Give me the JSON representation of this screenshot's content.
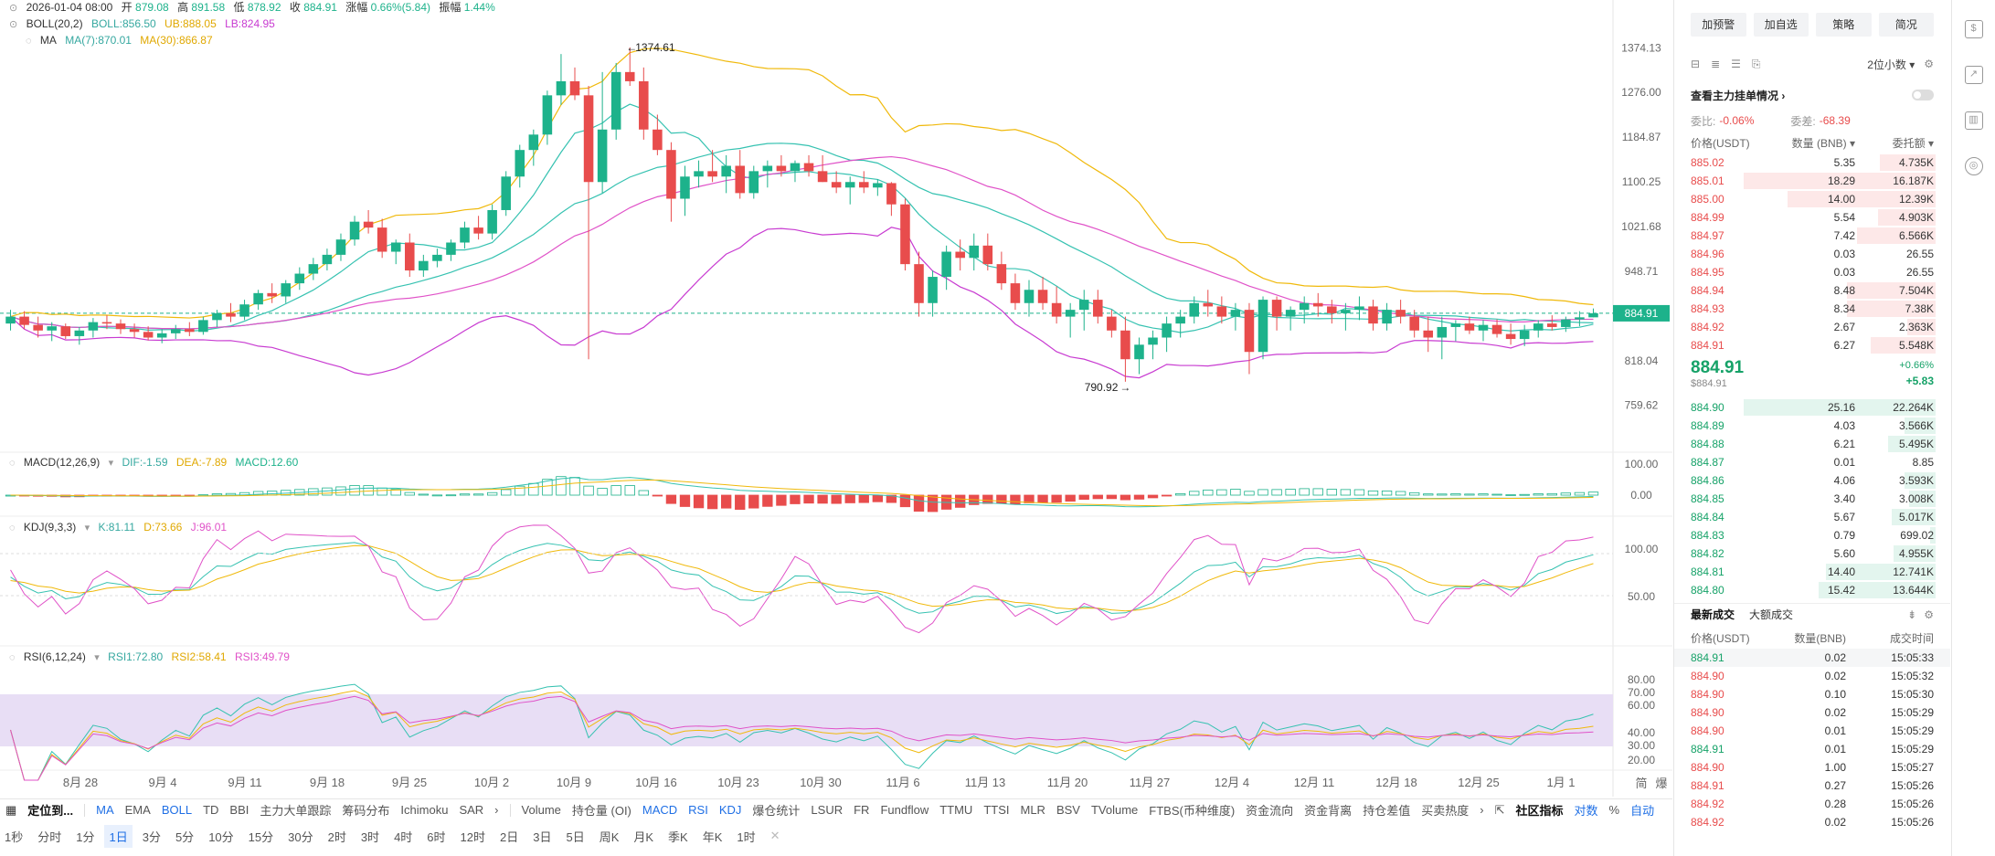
{
  "legend": {
    "date": "2026-01-04 08:00",
    "open_label": "开",
    "open": "879.08",
    "high_label": "高",
    "high": "891.58",
    "low_label": "低",
    "low": "878.92",
    "close_label": "收",
    "close": "884.91",
    "chg_label": "涨幅",
    "chg": "0.66%(5.84)",
    "amp_label": "振幅",
    "amp": "1.44%",
    "boll_title": "BOLL(20,2)",
    "boll": "BOLL:856.50",
    "ub": "UB:888.05",
    "lb": "LB:824.95",
    "ma_title": "MA",
    "ma7": "MA(7):870.01",
    "ma30": "MA(30):866.87",
    "macd_title": "MACD(12,26,9)",
    "dif": "DIF:-1.59",
    "dea": "DEA:-7.89",
    "macd": "MACD:12.60",
    "kdj_title": "KDJ(9,3,3)",
    "k": "K:81.11",
    "d": "D:73.66",
    "j": "J:96.01",
    "rsi_title": "RSI(6,12,24)",
    "rsi1": "RSI1:72.80",
    "rsi2": "RSI2:58.41",
    "rsi3": "RSI3:49.79"
  },
  "colors": {
    "up": "#1db28b",
    "down": "#e84c4c",
    "ma7": "#f0b90b",
    "ma30": "#e052c8",
    "boll": "#f0b90b",
    "ub": "#f0b90b",
    "lb": "#c83bd1",
    "mid": "#36c2b1"
  },
  "price_axis": [
    "1374.13",
    "1276.00",
    "1184.87",
    "1100.25",
    "1021.68",
    "948.71",
    "884.91",
    "818.04",
    "759.62"
  ],
  "macd_axis": [
    "100.00",
    "0.00"
  ],
  "kdj_axis": [
    "100.00",
    "50.00"
  ],
  "rsi_axis": [
    "80.00",
    "70.00",
    "60.00",
    "40.00",
    "30.00",
    "20.00"
  ],
  "date_axis": [
    "8月 28",
    "9月 4",
    "9月 11",
    "9月 18",
    "9月 25",
    "10月 2",
    "10月 9",
    "10月 16",
    "10月 23",
    "10月 30",
    "11月 6",
    "11月 13",
    "11月 20",
    "11月 27",
    "12月 4",
    "12月 11",
    "12月 18",
    "12月 25",
    "1月 1"
  ],
  "axis_corner": [
    "简",
    "爆"
  ],
  "high_mark": "1374.61",
  "low_mark": "790.92",
  "last_price": "884.91",
  "chart_data": {
    "type": "candlestick",
    "y_range": [
      730,
      1400
    ],
    "candles": [
      [
        870,
        890,
        860,
        880
      ],
      [
        880,
        888,
        862,
        868
      ],
      [
        868,
        880,
        850,
        860
      ],
      [
        860,
        872,
        845,
        866
      ],
      [
        866,
        870,
        848,
        852
      ],
      [
        852,
        865,
        840,
        860
      ],
      [
        860,
        878,
        850,
        872
      ],
      [
        872,
        882,
        862,
        870
      ],
      [
        870,
        876,
        855,
        862
      ],
      [
        862,
        870,
        850,
        858
      ],
      [
        858,
        866,
        846,
        850
      ],
      [
        850,
        862,
        842,
        856
      ],
      [
        856,
        868,
        848,
        862
      ],
      [
        862,
        872,
        852,
        858
      ],
      [
        858,
        880,
        854,
        875
      ],
      [
        875,
        890,
        865,
        885
      ],
      [
        885,
        900,
        872,
        880
      ],
      [
        880,
        905,
        875,
        898
      ],
      [
        898,
        920,
        890,
        915
      ],
      [
        915,
        930,
        900,
        910
      ],
      [
        910,
        935,
        900,
        930
      ],
      [
        930,
        955,
        920,
        945
      ],
      [
        945,
        970,
        935,
        960
      ],
      [
        960,
        985,
        950,
        975
      ],
      [
        975,
        1010,
        965,
        1000
      ],
      [
        1000,
        1040,
        990,
        1030
      ],
      [
        1030,
        1050,
        1010,
        1020
      ],
      [
        1020,
        1035,
        970,
        980
      ],
      [
        980,
        1000,
        960,
        995
      ],
      [
        995,
        1010,
        940,
        950
      ],
      [
        950,
        975,
        940,
        965
      ],
      [
        965,
        985,
        955,
        975
      ],
      [
        975,
        1000,
        965,
        995
      ],
      [
        995,
        1030,
        985,
        1020
      ],
      [
        1020,
        1040,
        1000,
        1010
      ],
      [
        1010,
        1060,
        1000,
        1050
      ],
      [
        1050,
        1120,
        1040,
        1110
      ],
      [
        1110,
        1170,
        1090,
        1160
      ],
      [
        1160,
        1200,
        1130,
        1190
      ],
      [
        1190,
        1280,
        1170,
        1270
      ],
      [
        1270,
        1360,
        1250,
        1300
      ],
      [
        1300,
        1330,
        1260,
        1270
      ],
      [
        1270,
        1290,
        820,
        1100
      ],
      [
        1100,
        1320,
        1080,
        1200
      ],
      [
        1200,
        1340,
        1180,
        1320
      ],
      [
        1320,
        1375,
        1290,
        1300
      ],
      [
        1300,
        1330,
        1180,
        1200
      ],
      [
        1200,
        1230,
        1150,
        1160
      ],
      [
        1160,
        1175,
        1030,
        1070
      ],
      [
        1070,
        1130,
        1040,
        1110
      ],
      [
        1110,
        1140,
        1090,
        1120
      ],
      [
        1120,
        1160,
        1100,
        1110
      ],
      [
        1110,
        1150,
        1080,
        1130
      ],
      [
        1130,
        1160,
        1070,
        1080
      ],
      [
        1080,
        1130,
        1070,
        1120
      ],
      [
        1120,
        1140,
        1090,
        1130
      ],
      [
        1130,
        1150,
        1110,
        1120
      ],
      [
        1120,
        1140,
        1100,
        1135
      ],
      [
        1135,
        1150,
        1110,
        1120
      ],
      [
        1120,
        1150,
        1100,
        1100
      ],
      [
        1100,
        1120,
        1080,
        1090
      ],
      [
        1090,
        1110,
        1060,
        1100
      ],
      [
        1100,
        1120,
        1080,
        1090
      ],
      [
        1090,
        1105,
        1075,
        1098
      ],
      [
        1098,
        1100,
        1040,
        1060
      ],
      [
        1060,
        1070,
        950,
        960
      ],
      [
        960,
        980,
        880,
        900
      ],
      [
        900,
        950,
        880,
        940
      ],
      [
        940,
        990,
        920,
        980
      ],
      [
        980,
        1000,
        950,
        970
      ],
      [
        970,
        1010,
        950,
        990
      ],
      [
        990,
        1010,
        950,
        960
      ],
      [
        960,
        980,
        920,
        930
      ],
      [
        930,
        945,
        890,
        900
      ],
      [
        900,
        935,
        880,
        920
      ],
      [
        920,
        940,
        890,
        900
      ],
      [
        900,
        925,
        870,
        880
      ],
      [
        880,
        900,
        850,
        890
      ],
      [
        890,
        920,
        860,
        905
      ],
      [
        905,
        920,
        870,
        880
      ],
      [
        880,
        890,
        850,
        860
      ],
      [
        860,
        880,
        790,
        820
      ],
      [
        820,
        850,
        800,
        840
      ],
      [
        840,
        860,
        820,
        850
      ],
      [
        850,
        880,
        830,
        870
      ],
      [
        870,
        890,
        850,
        880
      ],
      [
        880,
        910,
        870,
        900
      ],
      [
        900,
        920,
        880,
        895
      ],
      [
        895,
        910,
        870,
        880
      ],
      [
        880,
        900,
        860,
        890
      ],
      [
        890,
        900,
        800,
        830
      ],
      [
        830,
        910,
        820,
        905
      ],
      [
        905,
        910,
        860,
        880
      ],
      [
        880,
        895,
        860,
        890
      ],
      [
        890,
        910,
        870,
        900
      ],
      [
        900,
        915,
        880,
        895
      ],
      [
        895,
        905,
        870,
        885
      ],
      [
        885,
        900,
        860,
        890
      ],
      [
        890,
        910,
        875,
        895
      ],
      [
        895,
        905,
        860,
        870
      ],
      [
        870,
        900,
        860,
        890
      ],
      [
        890,
        905,
        870,
        880
      ],
      [
        880,
        890,
        850,
        860
      ],
      [
        860,
        880,
        830,
        850
      ],
      [
        850,
        880,
        820,
        865
      ],
      [
        865,
        875,
        845,
        870
      ],
      [
        870,
        880,
        855,
        860
      ],
      [
        860,
        875,
        845,
        868
      ],
      [
        868,
        876,
        850,
        855
      ],
      [
        855,
        870,
        840,
        848
      ],
      [
        848,
        868,
        838,
        860
      ],
      [
        860,
        875,
        850,
        870
      ],
      [
        870,
        882,
        860,
        865
      ],
      [
        865,
        880,
        858,
        876
      ],
      [
        876,
        888,
        866,
        879
      ],
      [
        879,
        892,
        879,
        885
      ]
    ]
  },
  "orderbook": {
    "buttons": [
      "加预警",
      "加自选",
      "策略",
      "简况"
    ],
    "decimals": "2位小数",
    "watch_label": "查看主力挂单情况",
    "ratio_label": "委比:",
    "ratio": "-0.06%",
    "diff_label": "委差:",
    "diff": "-68.39",
    "headers": [
      "价格(USDT)",
      "数量 (BNB)",
      "委托额"
    ],
    "asks": [
      [
        "885.02",
        "5.35",
        "4.735K",
        0.29
      ],
      [
        "885.01",
        "18.29",
        "16.187K",
        1.0
      ],
      [
        "885.00",
        "14.00",
        "12.39K",
        0.77
      ],
      [
        "884.99",
        "5.54",
        "4.903K",
        0.3
      ],
      [
        "884.97",
        "7.42",
        "6.566K",
        0.41
      ],
      [
        "884.96",
        "0.03",
        "26.55",
        0.0
      ],
      [
        "884.95",
        "0.03",
        "26.55",
        0.0
      ],
      [
        "884.94",
        "8.48",
        "7.504K",
        0.46
      ],
      [
        "884.93",
        "8.34",
        "7.38K",
        0.46
      ],
      [
        "884.92",
        "2.67",
        "2.363K",
        0.15
      ],
      [
        "884.91",
        "6.27",
        "5.548K",
        0.34
      ]
    ],
    "mid_price": "884.91",
    "mid_usd": "$884.91",
    "mid_pct": "+0.66%",
    "mid_abs": "+5.83",
    "bids": [
      [
        "884.90",
        "25.16",
        "22.264K",
        1.0
      ],
      [
        "884.89",
        "4.03",
        "3.566K",
        0.16
      ],
      [
        "884.88",
        "6.21",
        "5.495K",
        0.25
      ],
      [
        "884.87",
        "0.01",
        "8.85",
        0.0
      ],
      [
        "884.86",
        "4.06",
        "3.593K",
        0.16
      ],
      [
        "884.85",
        "3.40",
        "3.008K",
        0.14
      ],
      [
        "884.84",
        "5.67",
        "5.017K",
        0.23
      ],
      [
        "884.83",
        "0.79",
        "699.02",
        0.03
      ],
      [
        "884.82",
        "5.60",
        "4.955K",
        0.22
      ],
      [
        "884.81",
        "14.40",
        "12.741K",
        0.57
      ],
      [
        "884.80",
        "15.42",
        "13.644K",
        0.61
      ]
    ]
  },
  "trades": {
    "tabs": [
      "最新成交",
      "大额成交"
    ],
    "headers": [
      "价格(USDT)",
      "数量(BNB)",
      "成交时间"
    ],
    "rows": [
      [
        "884.91",
        "0.02",
        "15:05:33",
        "g"
      ],
      [
        "884.90",
        "0.02",
        "15:05:32",
        "r"
      ],
      [
        "884.90",
        "0.10",
        "15:05:30",
        "r"
      ],
      [
        "884.90",
        "0.02",
        "15:05:29",
        "r"
      ],
      [
        "884.90",
        "0.01",
        "15:05:29",
        "r"
      ],
      [
        "884.91",
        "0.01",
        "15:05:29",
        "g"
      ],
      [
        "884.90",
        "1.00",
        "15:05:27",
        "r"
      ],
      [
        "884.91",
        "0.27",
        "15:05:26",
        "r"
      ],
      [
        "884.92",
        "0.28",
        "15:05:26",
        "r"
      ],
      [
        "884.92",
        "0.02",
        "15:05:26",
        "r"
      ]
    ]
  },
  "toolbar": {
    "goto": "定位到...",
    "main_ind": [
      "MA",
      "EMA",
      "BOLL",
      "TD",
      "BBI",
      "主力大单跟踪",
      "筹码分布",
      "Ichimoku",
      "SAR"
    ],
    "sub_ind": [
      "Volume",
      "持仓量 (OI)",
      "MACD",
      "RSI",
      "KDJ",
      "爆仓统计",
      "LSUR",
      "FR",
      "Fundflow",
      "TTMU",
      "TTSI",
      "MLR",
      "BSV",
      "TVolume",
      "FTBS(币种维度)",
      "资金流向",
      "资金背离",
      "持仓差值",
      "买卖热度"
    ],
    "community": "社区指标",
    "log": "对数",
    "pct": "%",
    "auto": "自动"
  },
  "intervals": [
    "1秒",
    "分时",
    "1分",
    "1日",
    "3分",
    "5分",
    "10分",
    "15分",
    "30分",
    "2时",
    "3时",
    "4时",
    "6时",
    "12时",
    "2日",
    "3日",
    "5日",
    "周K",
    "月K",
    "季K",
    "年K",
    "1时"
  ],
  "selected_interval": "1日"
}
